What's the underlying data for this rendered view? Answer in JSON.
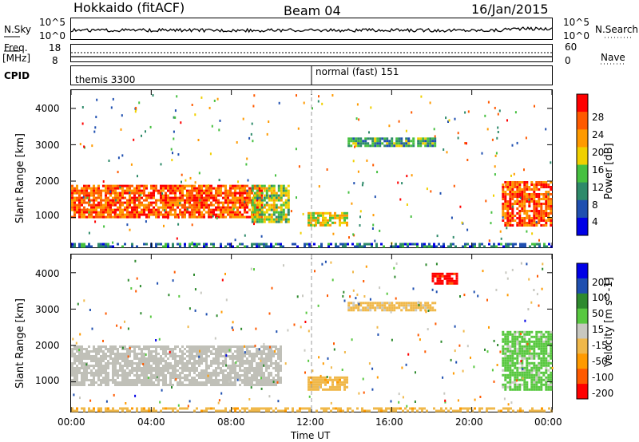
{
  "header": {
    "station": "Hokkaido (fitACF)",
    "beam": "Beam 04",
    "date": "16/Jan/2015"
  },
  "strip": {
    "nsky_label": "N.Sky",
    "nsearch_label": "N.Search",
    "nsky_ticks": [
      "10^5",
      "10^0"
    ],
    "nsearch_ticks": [
      "10^5",
      "10^0"
    ],
    "freq_label": "Freq.",
    "freq_unit": "[MHz]",
    "freq_ticks": [
      "18",
      "8"
    ],
    "nave_label": "Nave",
    "nave_ticks": [
      "60",
      "0"
    ],
    "cpid_label": "CPID",
    "cpid_segments": [
      {
        "label": "themis 3300",
        "start_hour": 0
      },
      {
        "label": "normal (fast) 151",
        "start_hour": 12
      }
    ]
  },
  "axes": {
    "xlabel": "Time UT",
    "x_ticks": [
      "00:00",
      "04:00",
      "08:00",
      "12:00",
      "16:00",
      "20:00",
      "00:00"
    ],
    "ylabel": "Slant Range [km]",
    "y_ticks": [
      "1000",
      "2000",
      "3000",
      "4000"
    ]
  },
  "colors": {
    "power": [
      "#0000e6",
      "#1f4fb0",
      "#2e8a6a",
      "#46c040",
      "#f0d000",
      "#ff9a00",
      "#ff5a00",
      "#ff0000"
    ],
    "velocity": [
      "#ff0000",
      "#ff5a00",
      "#ff9a00",
      "#f0b84a",
      "#c8c8c0",
      "#58c840",
      "#2e8a2e",
      "#1f4fb0",
      "#0000e6"
    ],
    "ground_scatter": "#c0c0b8"
  },
  "chart_data": [
    {
      "type": "heatmap",
      "title": "",
      "xlabel": "Time UT",
      "ylabel": "Slant Range [km]",
      "xlim": [
        0,
        24
      ],
      "ylim": [
        180,
        4500
      ],
      "colorbar": {
        "label": "Power [dB]",
        "ticks": [
          "4",
          "8",
          "12",
          "16",
          "20",
          "24",
          "28"
        ],
        "range": [
          0,
          32
        ]
      },
      "regions": [
        {
          "x": [
            0.0,
            9.5
          ],
          "y": [
            1000,
            1900
          ],
          "value": 26,
          "desc_type": "ionospheric scatter"
        },
        {
          "x": [
            9.0,
            10.8
          ],
          "y": [
            900,
            1900
          ],
          "value": 16
        },
        {
          "x": [
            11.8,
            13.8
          ],
          "y": [
            800,
            1150
          ],
          "value": 18
        },
        {
          "x": [
            13.8,
            18.2
          ],
          "y": [
            3000,
            3200
          ],
          "value": 12
        },
        {
          "x": [
            21.5,
            24.0
          ],
          "y": [
            800,
            2000
          ],
          "value": 26
        },
        {
          "x": [
            0.0,
            24.0
          ],
          "y": [
            180,
            300
          ],
          "value": 8
        }
      ]
    },
    {
      "type": "heatmap",
      "title": "",
      "xlabel": "Time UT",
      "ylabel": "Slant Range [km]",
      "xlim": [
        0,
        24
      ],
      "ylim": [
        180,
        4500
      ],
      "colorbar": {
        "label": "Velocity [m s^-1]",
        "ticks": [
          "200",
          "100",
          "50",
          "15",
          "-15",
          "-50",
          "-100",
          "-200"
        ],
        "range": [
          -250,
          250
        ]
      },
      "regions": [
        {
          "x": [
            0.0,
            10.5
          ],
          "y": [
            900,
            2000
          ],
          "value": 0,
          "desc_type": "ground scatter"
        },
        {
          "x": [
            11.8,
            13.8
          ],
          "y": [
            800,
            1150
          ],
          "value": -60
        },
        {
          "x": [
            13.8,
            18.2
          ],
          "y": [
            3000,
            3200
          ],
          "value": -50
        },
        {
          "x": [
            18.0,
            19.2
          ],
          "y": [
            3700,
            4000
          ],
          "value": -220
        },
        {
          "x": [
            21.5,
            24.0
          ],
          "y": [
            800,
            2400
          ],
          "value": 50
        },
        {
          "x": [
            0.0,
            24.0
          ],
          "y": [
            180,
            300
          ],
          "value": -60
        }
      ]
    }
  ]
}
